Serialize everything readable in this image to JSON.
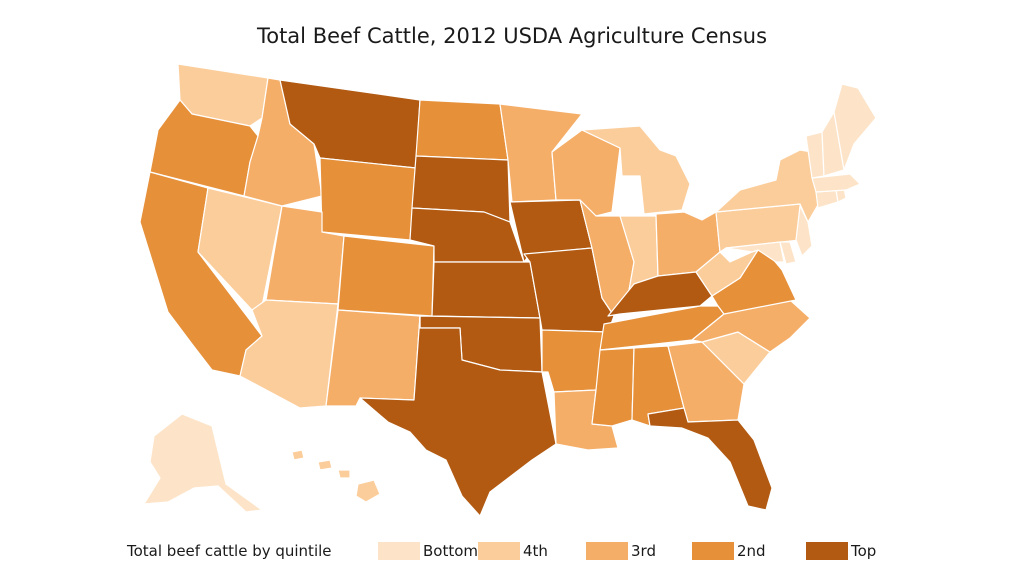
{
  "title": "Total Beef Cattle, 2012 USDA Agriculture Census",
  "legend": {
    "title": "Total beef cattle by quintile",
    "items": [
      {
        "key": "bottom",
        "label": "Bottom",
        "color": "#fde4c8"
      },
      {
        "key": "fourth",
        "label": "4th",
        "color": "#fbcd9b"
      },
      {
        "key": "third",
        "label": "3rd",
        "color": "#f5ae68"
      },
      {
        "key": "second",
        "label": "2nd",
        "color": "#e6903a"
      },
      {
        "key": "top",
        "label": "Top",
        "color": "#b25a12"
      }
    ]
  },
  "states": [
    {
      "abbr": "WA",
      "quintile": "fourth"
    },
    {
      "abbr": "OR",
      "quintile": "second"
    },
    {
      "abbr": "CA",
      "quintile": "second"
    },
    {
      "abbr": "NV",
      "quintile": "fourth"
    },
    {
      "abbr": "ID",
      "quintile": "third"
    },
    {
      "abbr": "MT",
      "quintile": "top"
    },
    {
      "abbr": "WY",
      "quintile": "second"
    },
    {
      "abbr": "UT",
      "quintile": "third"
    },
    {
      "abbr": "AZ",
      "quintile": "fourth"
    },
    {
      "abbr": "CO",
      "quintile": "second"
    },
    {
      "abbr": "NM",
      "quintile": "third"
    },
    {
      "abbr": "ND",
      "quintile": "second"
    },
    {
      "abbr": "SD",
      "quintile": "top"
    },
    {
      "abbr": "NE",
      "quintile": "top"
    },
    {
      "abbr": "KS",
      "quintile": "top"
    },
    {
      "abbr": "OK",
      "quintile": "top"
    },
    {
      "abbr": "TX",
      "quintile": "top"
    },
    {
      "abbr": "MN",
      "quintile": "third"
    },
    {
      "abbr": "IA",
      "quintile": "top"
    },
    {
      "abbr": "MO",
      "quintile": "top"
    },
    {
      "abbr": "AR",
      "quintile": "second"
    },
    {
      "abbr": "LA",
      "quintile": "third"
    },
    {
      "abbr": "WI",
      "quintile": "third"
    },
    {
      "abbr": "IL",
      "quintile": "third"
    },
    {
      "abbr": "MI",
      "quintile": "fourth"
    },
    {
      "abbr": "IN",
      "quintile": "fourth"
    },
    {
      "abbr": "OH",
      "quintile": "third"
    },
    {
      "abbr": "KY",
      "quintile": "top"
    },
    {
      "abbr": "TN",
      "quintile": "second"
    },
    {
      "abbr": "MS",
      "quintile": "second"
    },
    {
      "abbr": "AL",
      "quintile": "second"
    },
    {
      "abbr": "GA",
      "quintile": "third"
    },
    {
      "abbr": "FL",
      "quintile": "top"
    },
    {
      "abbr": "SC",
      "quintile": "fourth"
    },
    {
      "abbr": "NC",
      "quintile": "third"
    },
    {
      "abbr": "VA",
      "quintile": "second"
    },
    {
      "abbr": "WV",
      "quintile": "fourth"
    },
    {
      "abbr": "PA",
      "quintile": "fourth"
    },
    {
      "abbr": "NY",
      "quintile": "fourth"
    },
    {
      "abbr": "MD",
      "quintile": "bottom"
    },
    {
      "abbr": "DE",
      "quintile": "bottom"
    },
    {
      "abbr": "NJ",
      "quintile": "bottom"
    },
    {
      "abbr": "CT",
      "quintile": "bottom"
    },
    {
      "abbr": "RI",
      "quintile": "bottom"
    },
    {
      "abbr": "MA",
      "quintile": "bottom"
    },
    {
      "abbr": "VT",
      "quintile": "bottom"
    },
    {
      "abbr": "NH",
      "quintile": "bottom"
    },
    {
      "abbr": "ME",
      "quintile": "bottom"
    },
    {
      "abbr": "AK",
      "quintile": "bottom"
    },
    {
      "abbr": "HI",
      "quintile": "fourth"
    }
  ]
}
